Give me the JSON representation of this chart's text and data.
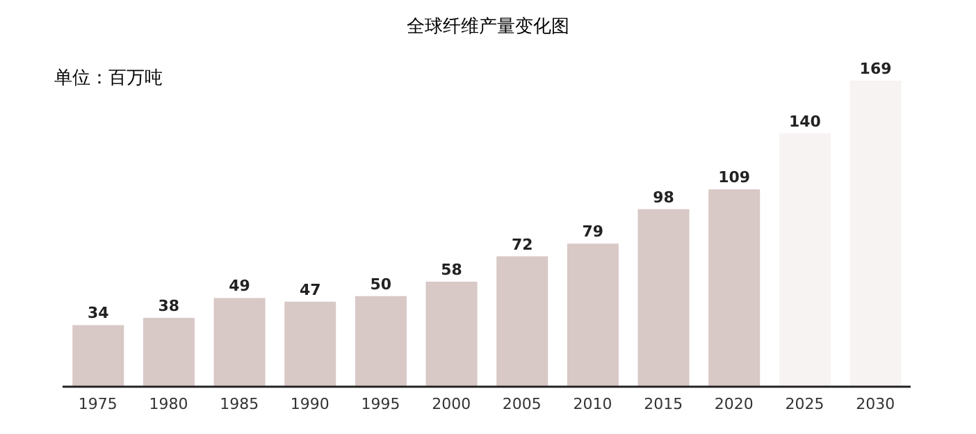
{
  "chart_data": {
    "type": "bar",
    "title": "全球纤维产量变化图",
    "ylabel": "单位：百万吨",
    "categories": [
      "1975",
      "1980",
      "1985",
      "1990",
      "1995",
      "2000",
      "2005",
      "2010",
      "2015",
      "2020",
      "2025",
      "2030"
    ],
    "values": [
      34,
      38,
      49,
      47,
      50,
      58,
      72,
      79,
      98,
      109,
      140,
      169
    ],
    "colors": [
      "#d8c8c6",
      "#d8c8c6",
      "#d8c8c6",
      "#d8c8c6",
      "#d8c8c6",
      "#d8c8c6",
      "#d8c8c6",
      "#d8c8c6",
      "#d8c8c6",
      "#d8c8c6",
      "#f7f3f2",
      "#f7f3f2"
    ],
    "data_labels": true,
    "tick_labels": "x"
  }
}
